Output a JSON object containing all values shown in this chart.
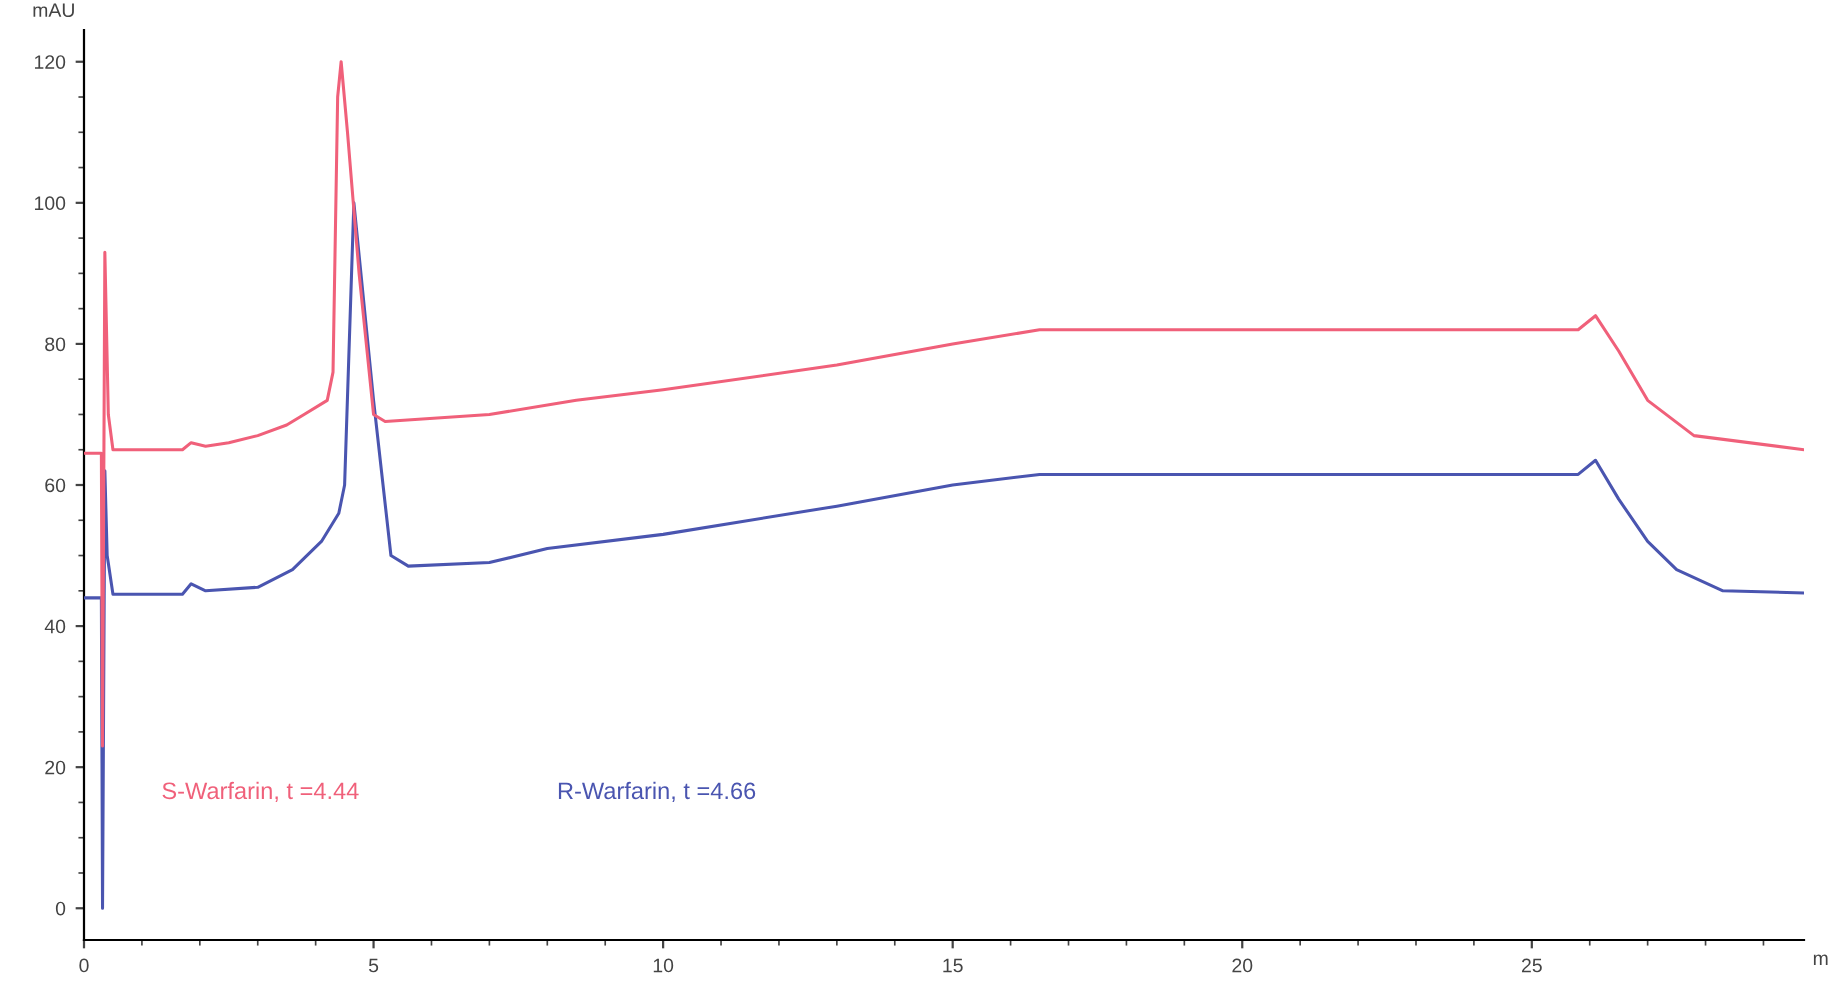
{
  "chart_data": {
    "type": "line",
    "xlabel": "m",
    "ylabel": "mAU",
    "xlim": [
      0,
      29.7
    ],
    "xticks": [
      0,
      5,
      10,
      15,
      20,
      25
    ],
    "ylim": [
      -4.5,
      124.5
    ],
    "yticks": [
      0,
      20,
      40,
      60,
      80,
      100,
      120
    ],
    "grid": false,
    "legend": false,
    "marker": "none",
    "line_style": "solid",
    "series": [
      {
        "name": "S-Warfarin, t =4.44",
        "color": "#f0607a",
        "x": [
          0,
          0.3,
          0.32,
          0.36,
          0.42,
          0.5,
          1.7,
          1.85,
          2.1,
          2.5,
          3,
          3.5,
          3.8,
          4.2,
          4.3,
          4.38,
          4.44,
          4.55,
          4.75,
          5.0,
          5.2,
          7,
          8.5,
          10,
          13,
          15,
          16.5,
          20,
          25.8,
          26.1,
          26.5,
          27,
          27.8,
          29.7
        ],
        "values": [
          64.5,
          64.5,
          23,
          93,
          70,
          65,
          65,
          66,
          65.5,
          66,
          67,
          68.5,
          70,
          72,
          76,
          115,
          120,
          110,
          90,
          70,
          69,
          70,
          72,
          73.5,
          77,
          80,
          82,
          82,
          82,
          84,
          79,
          72,
          67,
          65
        ]
      },
      {
        "name": "R-Warfarin, t =4.66",
        "color": "#4a55b0",
        "x": [
          0,
          0.3,
          0.32,
          0.36,
          0.4,
          0.5,
          1.7,
          1.85,
          2.1,
          3,
          3.6,
          4.1,
          4.4,
          4.5,
          4.66,
          5.0,
          5.3,
          5.6,
          7,
          8,
          10,
          13,
          15,
          16.5,
          20,
          25.8,
          26.1,
          26.5,
          27,
          27.5,
          28.3,
          29.7
        ],
        "values": [
          44,
          44,
          0,
          62,
          50,
          44.5,
          44.5,
          46,
          45,
          45.5,
          48,
          52,
          56,
          60,
          100,
          72,
          50,
          48.5,
          49,
          51,
          53,
          57,
          60,
          61.5,
          61.5,
          61.5,
          63.5,
          58,
          52,
          48,
          45,
          44.7
        ]
      }
    ]
  }
}
